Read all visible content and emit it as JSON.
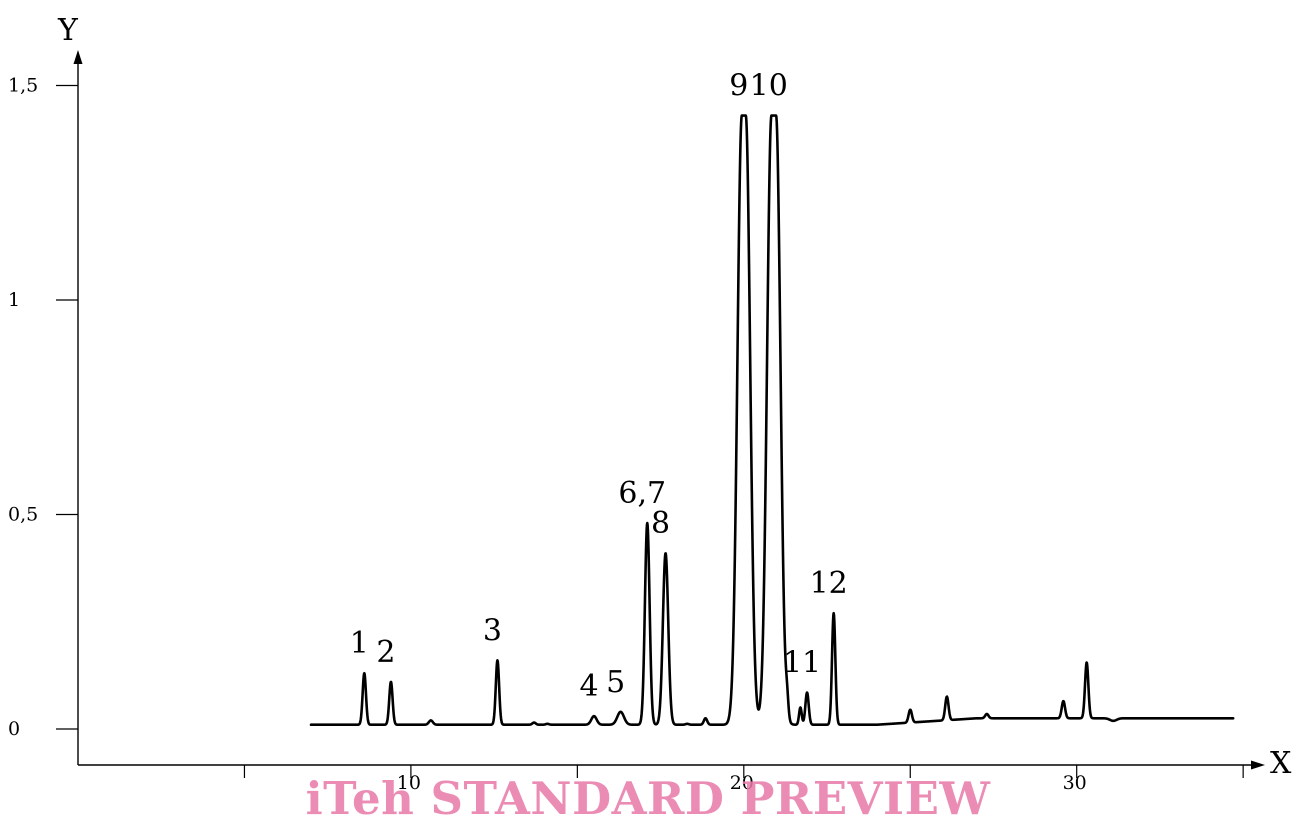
{
  "watermark": "iTeh STANDARD PREVIEW",
  "colors": {
    "trace": "#000000",
    "watermark": "#e879a8"
  },
  "chart_data": {
    "type": "line",
    "xlabel": "X",
    "ylabel": "Y",
    "xlim": [
      0,
      35
    ],
    "ylim": [
      0,
      1.5
    ],
    "x_ticks": [
      {
        "value": 5,
        "label": ""
      },
      {
        "value": 10,
        "label": "10"
      },
      {
        "value": 15,
        "label": ""
      },
      {
        "value": 20,
        "label": "20"
      },
      {
        "value": 25,
        "label": ""
      },
      {
        "value": 30,
        "label": "30"
      },
      {
        "value": 35,
        "label": ""
      }
    ],
    "y_ticks": [
      {
        "value": 0,
        "label": "0"
      },
      {
        "value": 0.5,
        "label": "0,5"
      },
      {
        "value": 1,
        "label": "1"
      },
      {
        "value": 1.5,
        "label": "1,5"
      }
    ],
    "baseline": 0.01,
    "baseline_end": 0.025,
    "x_start": 7.0,
    "x_end": 34.7,
    "peaks": [
      {
        "label": "1",
        "x": 8.6,
        "y": 0.13,
        "width": 0.05
      },
      {
        "label": "2",
        "x": 9.4,
        "y": 0.11,
        "width": 0.05
      },
      {
        "label": "",
        "x": 10.6,
        "y": 0.02,
        "width": 0.06
      },
      {
        "label": "3",
        "x": 12.6,
        "y": 0.16,
        "width": 0.05
      },
      {
        "label": "",
        "x": 13.7,
        "y": 0.015,
        "width": 0.05
      },
      {
        "label": "",
        "x": 14.1,
        "y": 0.012,
        "width": 0.05
      },
      {
        "label": "4",
        "x": 15.5,
        "y": 0.03,
        "width": 0.08
      },
      {
        "label": "5",
        "x": 16.3,
        "y": 0.04,
        "width": 0.1
      },
      {
        "label": "6,7",
        "x": 17.1,
        "y": 0.48,
        "width": 0.07
      },
      {
        "label": "8",
        "x": 17.65,
        "y": 0.41,
        "width": 0.08
      },
      {
        "label": "",
        "x": 18.3,
        "y": 0.012,
        "width": 0.05
      },
      {
        "label": "",
        "x": 18.85,
        "y": 0.025,
        "width": 0.05
      },
      {
        "label": "9",
        "x": 20.0,
        "y": 1.43,
        "width": 0.13,
        "flat": 0.12
      },
      {
        "label": "10",
        "x": 20.9,
        "y": 1.43,
        "width": 0.13,
        "flat": 0.14
      },
      {
        "label": "",
        "x": 21.3,
        "y": 0.05,
        "width": 0.04
      },
      {
        "label": "",
        "x": 21.7,
        "y": 0.05,
        "width": 0.04
      },
      {
        "label": "11",
        "x": 21.9,
        "y": 0.085,
        "width": 0.05
      },
      {
        "label": "12",
        "x": 22.7,
        "y": 0.27,
        "width": 0.05
      },
      {
        "label": "",
        "x": 25.0,
        "y": 0.04,
        "width": 0.05
      },
      {
        "label": "",
        "x": 26.1,
        "y": 0.065,
        "width": 0.05
      },
      {
        "label": "",
        "x": 27.3,
        "y": 0.02,
        "width": 0.05
      },
      {
        "label": "",
        "x": 28.8,
        "y": 0.01,
        "width": 0.1
      },
      {
        "label": "",
        "x": 29.6,
        "y": 0.05,
        "width": 0.05
      },
      {
        "label": "",
        "x": 30.3,
        "y": 0.14,
        "width": 0.05
      },
      {
        "label": "",
        "x": 31.1,
        "y": 0.004,
        "width": 0.1
      }
    ]
  }
}
